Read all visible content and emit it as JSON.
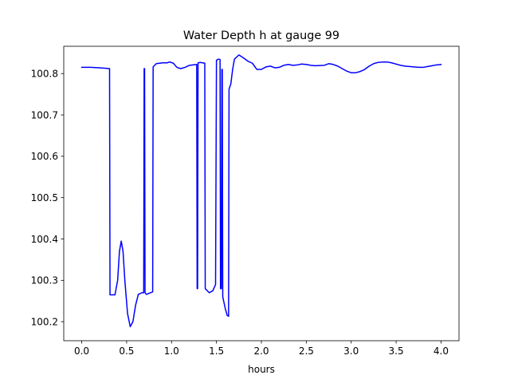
{
  "chart_data": {
    "type": "line",
    "title": "Water Depth h at gauge 99",
    "xlabel": "hours",
    "ylabel": "",
    "xlim": [
      -0.2,
      4.2
    ],
    "ylim": [
      100.154,
      100.866
    ],
    "x_ticks": [
      0.0,
      0.5,
      1.0,
      1.5,
      2.0,
      2.5,
      3.0,
      3.5,
      4.0
    ],
    "x_tick_labels": [
      "0.0",
      "0.5",
      "1.0",
      "1.5",
      "2.0",
      "2.5",
      "3.0",
      "3.5",
      "4.0"
    ],
    "y_ticks": [
      100.2,
      100.3,
      100.4,
      100.5,
      100.6,
      100.7,
      100.8
    ],
    "y_tick_labels": [
      "100.2",
      "100.3",
      "100.4",
      "100.5",
      "100.6",
      "100.7",
      "100.8"
    ],
    "grid": false,
    "series": [
      {
        "name": "h",
        "color": "#0000ff",
        "points": [
          [
            0.0,
            100.815
          ],
          [
            0.1,
            100.815
          ],
          [
            0.2,
            100.814
          ],
          [
            0.31,
            100.812
          ],
          [
            0.315,
            100.265
          ],
          [
            0.37,
            100.265
          ],
          [
            0.4,
            100.3
          ],
          [
            0.42,
            100.37
          ],
          [
            0.44,
            100.395
          ],
          [
            0.46,
            100.37
          ],
          [
            0.48,
            100.3
          ],
          [
            0.51,
            100.22
          ],
          [
            0.54,
            100.188
          ],
          [
            0.57,
            100.2
          ],
          [
            0.6,
            100.24
          ],
          [
            0.63,
            100.266
          ],
          [
            0.67,
            100.27
          ],
          [
            0.69,
            100.27
          ],
          [
            0.695,
            100.812
          ],
          [
            0.7,
            100.812
          ],
          [
            0.705,
            100.27
          ],
          [
            0.72,
            100.266
          ],
          [
            0.79,
            100.272
          ],
          [
            0.795,
            100.816
          ],
          [
            0.83,
            100.824
          ],
          [
            0.9,
            100.826
          ],
          [
            0.95,
            100.826
          ],
          [
            0.98,
            100.828
          ],
          [
            1.02,
            100.825
          ],
          [
            1.06,
            100.815
          ],
          [
            1.1,
            100.812
          ],
          [
            1.15,
            100.815
          ],
          [
            1.2,
            100.82
          ],
          [
            1.28,
            100.822
          ],
          [
            1.285,
            100.28
          ],
          [
            1.29,
            100.28
          ],
          [
            1.295,
            100.826
          ],
          [
            1.32,
            100.827
          ],
          [
            1.37,
            100.825
          ],
          [
            1.375,
            100.28
          ],
          [
            1.42,
            100.27
          ],
          [
            1.46,
            100.275
          ],
          [
            1.49,
            100.29
          ],
          [
            1.5,
            100.832
          ],
          [
            1.52,
            100.835
          ],
          [
            1.54,
            100.834
          ],
          [
            1.545,
            100.28
          ],
          [
            1.555,
            100.28
          ],
          [
            1.56,
            100.81
          ],
          [
            1.565,
            100.81
          ],
          [
            1.57,
            100.26
          ],
          [
            1.6,
            100.23
          ],
          [
            1.62,
            100.215
          ],
          [
            1.635,
            100.213
          ],
          [
            1.64,
            100.762
          ],
          [
            1.66,
            100.775
          ],
          [
            1.68,
            100.81
          ],
          [
            1.7,
            100.835
          ],
          [
            1.75,
            100.845
          ],
          [
            1.8,
            100.838
          ],
          [
            1.85,
            100.83
          ],
          [
            1.9,
            100.825
          ],
          [
            1.95,
            100.81
          ],
          [
            2.0,
            100.81
          ],
          [
            2.05,
            100.816
          ],
          [
            2.1,
            100.818
          ],
          [
            2.15,
            100.814
          ],
          [
            2.2,
            100.815
          ],
          [
            2.25,
            100.82
          ],
          [
            2.3,
            100.822
          ],
          [
            2.35,
            100.82
          ],
          [
            2.4,
            100.821
          ],
          [
            2.45,
            100.823
          ],
          [
            2.5,
            100.822
          ],
          [
            2.55,
            100.82
          ],
          [
            2.6,
            100.819
          ],
          [
            2.7,
            100.82
          ],
          [
            2.75,
            100.824
          ],
          [
            2.8,
            100.822
          ],
          [
            2.85,
            100.818
          ],
          [
            2.9,
            100.812
          ],
          [
            2.95,
            100.806
          ],
          [
            3.0,
            100.802
          ],
          [
            3.05,
            100.802
          ],
          [
            3.1,
            100.805
          ],
          [
            3.15,
            100.81
          ],
          [
            3.2,
            100.818
          ],
          [
            3.25,
            100.824
          ],
          [
            3.3,
            100.827
          ],
          [
            3.35,
            100.828
          ],
          [
            3.4,
            100.828
          ],
          [
            3.45,
            100.826
          ],
          [
            3.5,
            100.823
          ],
          [
            3.55,
            100.82
          ],
          [
            3.6,
            100.818
          ],
          [
            3.65,
            100.817
          ],
          [
            3.7,
            100.816
          ],
          [
            3.75,
            100.815
          ],
          [
            3.8,
            100.815
          ],
          [
            3.85,
            100.817
          ],
          [
            3.9,
            100.819
          ],
          [
            3.95,
            100.821
          ],
          [
            4.0,
            100.822
          ]
        ]
      }
    ]
  }
}
